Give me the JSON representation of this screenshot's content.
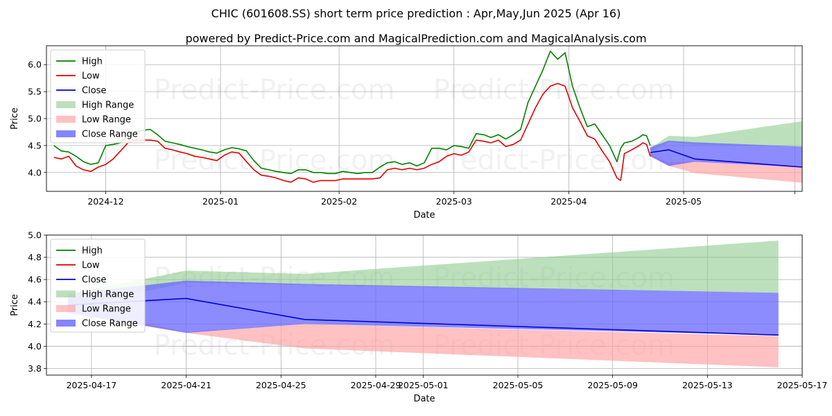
{
  "title": "CHIC (601608.SS) short term price prediction : Apr,May,Jun 2025 (Apr 16)",
  "subtitle": "powered by Predict-Price.com and MagicalPrediction.com and MagicalAnalysis.com",
  "watermark": "Predict-Price.com",
  "colors": {
    "high": "#008000",
    "low": "#e00000",
    "close": "#0000dd",
    "high_range": "#8fcc8f",
    "low_range": "#ff9f9f",
    "close_range": "#6666ff",
    "grid": "#b0b0b0"
  },
  "chart_data": [
    {
      "type": "line",
      "xlabel": "Date",
      "ylabel": "Price",
      "ylim": [
        3.65,
        6.35
      ],
      "xlim": [
        -65,
        139
      ],
      "x_reference_date": "2024-11-15",
      "yticks": [
        4.0,
        4.5,
        5.0,
        5.5,
        6.0
      ],
      "ytick_labels": [
        "4.0",
        "4.5",
        "5.0",
        "5.5",
        "6.0"
      ],
      "xticks": [
        -49,
        -18,
        14,
        45,
        76,
        107,
        137
      ],
      "xtick_labels": [
        "2024-12",
        "2025-01",
        "2025-02",
        "2025-03",
        "2025-04",
        "2025-05",
        ""
      ],
      "grid": true,
      "legend": [
        "High",
        "Low",
        "Close",
        "High Range",
        "Low Range",
        "Close Range"
      ],
      "legend_position": "top-left",
      "history": {
        "x": [
          -63,
          -61,
          -59,
          -57,
          -55,
          -53,
          -51,
          -49,
          -47,
          -45,
          -43,
          -41,
          -39,
          -37,
          -35,
          -33,
          -31,
          -29,
          -27,
          -25,
          -23,
          -21,
          -19,
          -17,
          -15,
          -13,
          -11,
          -9,
          -7,
          -5,
          -3,
          -1,
          1,
          3,
          5,
          7,
          9,
          11,
          13,
          15,
          17,
          19,
          21,
          23,
          25,
          27,
          29,
          31,
          33,
          35,
          37,
          39,
          41,
          43,
          45,
          47,
          49,
          51,
          53,
          55,
          57,
          59,
          61,
          63,
          65,
          67,
          69,
          71,
          73,
          75,
          77,
          79,
          81,
          83,
          85,
          87,
          89,
          90
        ],
        "high": [
          4.5,
          4.4,
          4.38,
          4.3,
          4.2,
          4.15,
          4.18,
          4.5,
          4.52,
          4.55,
          4.7,
          4.75,
          4.78,
          4.8,
          4.7,
          4.58,
          4.55,
          4.52,
          4.48,
          4.45,
          4.42,
          4.38,
          4.36,
          4.42,
          4.46,
          4.44,
          4.4,
          4.22,
          4.08,
          4.05,
          4.02,
          4.0,
          3.98,
          4.05,
          4.05,
          4.0,
          4.0,
          3.98,
          3.98,
          4.02,
          4.0,
          3.98,
          4.0,
          4.0,
          4.1,
          4.18,
          4.2,
          4.15,
          4.18,
          4.12,
          4.18,
          4.45,
          4.45,
          4.42,
          4.5,
          4.48,
          4.45,
          4.72,
          4.7,
          4.65,
          4.7,
          4.62,
          4.7,
          4.8,
          5.3,
          5.6,
          5.9,
          6.25,
          6.1,
          6.22,
          5.6,
          5.2,
          4.85,
          4.9,
          4.7,
          4.5,
          4.2,
          4.45
        ],
        "low": [
          4.28,
          4.25,
          4.3,
          4.12,
          4.05,
          4.02,
          4.1,
          4.15,
          4.25,
          4.4,
          4.55,
          4.6,
          4.6,
          4.6,
          4.58,
          4.45,
          4.42,
          4.38,
          4.35,
          4.3,
          4.28,
          4.25,
          4.22,
          4.32,
          4.38,
          4.36,
          4.2,
          4.05,
          3.95,
          3.93,
          3.9,
          3.85,
          3.82,
          3.9,
          3.88,
          3.82,
          3.85,
          3.85,
          3.85,
          3.88,
          3.88,
          3.88,
          3.88,
          3.88,
          3.9,
          4.05,
          4.08,
          4.05,
          4.08,
          4.05,
          4.08,
          4.15,
          4.2,
          4.3,
          4.35,
          4.32,
          4.38,
          4.6,
          4.58,
          4.55,
          4.6,
          4.48,
          4.52,
          4.6,
          4.9,
          5.2,
          5.45,
          5.6,
          5.65,
          5.6,
          5.2,
          4.95,
          4.68,
          4.62,
          4.4,
          4.2,
          3.9,
          3.85
        ]
      },
      "history_tail": {
        "x": [
          90,
          91,
          93,
          95,
          96,
          97,
          98
        ],
        "high": [
          4.45,
          4.55,
          4.58,
          4.65,
          4.7,
          4.68,
          4.5
        ],
        "low": [
          3.85,
          4.35,
          4.42,
          4.5,
          4.55,
          4.52,
          4.3
        ]
      },
      "forecast": {
        "x": [
          98,
          103,
          110,
          139
        ],
        "close": [
          4.37,
          4.42,
          4.25,
          4.1
        ],
        "high_range_upper": [
          4.45,
          4.68,
          4.66,
          4.95
        ],
        "high_range_lower": [
          4.38,
          4.56,
          4.52,
          4.48
        ],
        "low_range_upper": [
          4.35,
          4.18,
          4.22,
          4.1
        ],
        "low_range_lower": [
          4.3,
          4.12,
          3.99,
          3.81
        ],
        "close_range_upper": [
          4.47,
          4.59,
          4.56,
          4.48
        ],
        "close_range_lower": [
          4.3,
          4.12,
          4.2,
          4.1
        ]
      }
    },
    {
      "type": "line",
      "xlabel": "Date",
      "ylabel": "Price",
      "ylim": [
        3.74,
        5.0
      ],
      "xlim": [
        -0.9,
        31.0
      ],
      "x_reference_date": "2025-04-16",
      "yticks": [
        3.8,
        4.0,
        4.2,
        4.4,
        4.6,
        4.8,
        5.0
      ],
      "ytick_labels": [
        "3.8",
        "4.0",
        "4.2",
        "4.4",
        "4.6",
        "4.8",
        "5.0"
      ],
      "xticks": [
        1,
        5,
        9,
        13,
        15,
        19,
        23,
        27,
        31
      ],
      "xtick_labels": [
        "2025-04-17",
        "2025-04-21",
        "2025-04-25",
        "2025-04-29",
        "2025-05-01",
        "2025-05-05",
        "2025-05-09",
        "2025-05-13",
        "2025-05-17"
      ],
      "grid": true,
      "legend": [
        "High",
        "Low",
        "Close",
        "High Range",
        "Low Range",
        "Close Range"
      ],
      "legend_position": "top-left",
      "forecast": {
        "x": [
          0,
          5,
          10,
          30
        ],
        "close": [
          4.37,
          4.43,
          4.24,
          4.1
        ],
        "high_range_upper": [
          4.47,
          4.68,
          4.65,
          4.95
        ],
        "high_range_lower": [
          4.35,
          4.57,
          4.55,
          4.48
        ],
        "low_range_upper": [
          4.35,
          4.13,
          4.2,
          4.09
        ],
        "low_range_lower": [
          4.3,
          4.12,
          3.98,
          3.81
        ],
        "close_range_upper": [
          4.47,
          4.59,
          4.56,
          4.48
        ],
        "close_range_lower": [
          4.3,
          4.12,
          4.2,
          4.1
        ]
      }
    }
  ]
}
